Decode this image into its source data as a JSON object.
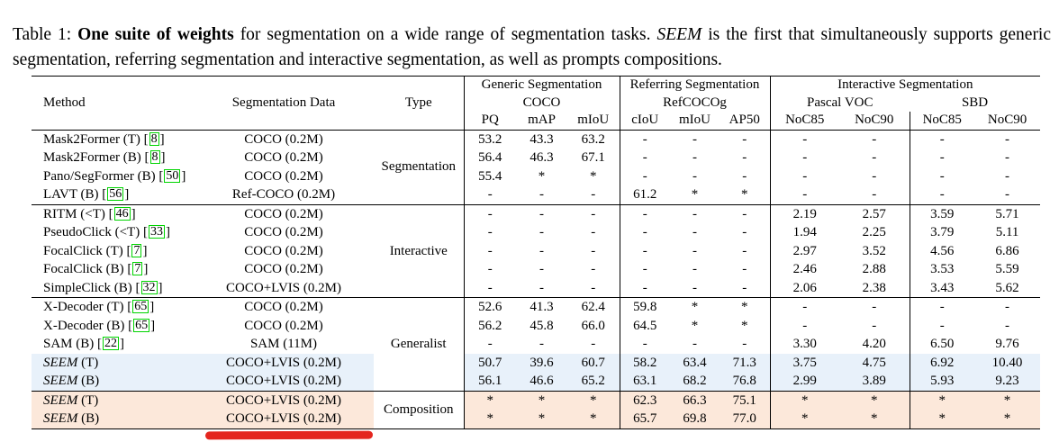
{
  "caption": {
    "prefix": "Table 1: ",
    "bold": "One suite of weights",
    "mid": " for segmentation on a wide range of segmentation tasks. ",
    "italic": "SEEM",
    "suffix": " is the first that simultaneously supports generic segmentation, referring segmentation and interactive segmentation, as well as prompts compositions."
  },
  "table": {
    "citation": {
      "open": "[",
      "close": "]"
    },
    "colors": {
      "highlight_blue": "#e8f1fa",
      "highlight_peach": "#fce8da",
      "citation_green": "#00d400",
      "annotation_red": "#e4261f"
    },
    "header": {
      "method": "Method",
      "seg_data": "Segmentation Data",
      "type": "Type",
      "groups": [
        {
          "title": "Generic Segmentation",
          "subtitle": "COCO",
          "cols": [
            "PQ",
            "mAP",
            "mIoU"
          ]
        },
        {
          "title": "Referring Segmentation",
          "subtitle": "RefCOCOg",
          "cols": [
            "cIoU",
            "mIoU",
            "AP50"
          ]
        },
        {
          "title": "Interactive Segmentation",
          "subgroups": [
            {
              "subtitle": "Pascal VOC",
              "cols": [
                "NoC85",
                "NoC90"
              ]
            },
            {
              "subtitle": "SBD",
              "cols": [
                "NoC85",
                "NoC90"
              ]
            }
          ]
        }
      ]
    },
    "groups": [
      {
        "type": "Segmentation",
        "rows": [
          {
            "name": "Mask2Former (T) ",
            "cite": "8",
            "data": "COCO (0.2M)",
            "values": [
              "53.2",
              "43.3",
              "63.2",
              "-",
              "-",
              "-",
              "-",
              "-",
              "-",
              "-"
            ]
          },
          {
            "name": "Mask2Former (B) ",
            "cite": "8",
            "data": "COCO (0.2M)",
            "values": [
              "56.4",
              "46.3",
              "67.1",
              "-",
              "-",
              "-",
              "-",
              "-",
              "-",
              "-"
            ]
          },
          {
            "name": "Pano/SegFormer (B) ",
            "cite": "50",
            "data": "COCO (0.2M)",
            "values": [
              "55.4",
              "*",
              "*",
              "-",
              "-",
              "-",
              "-",
              "-",
              "-",
              "-"
            ]
          },
          {
            "name": "LAVT (B) ",
            "cite": "56",
            "data": "Ref-COCO (0.2M)",
            "values": [
              "-",
              "-",
              "-",
              "61.2",
              "*",
              "*",
              "-",
              "-",
              "-",
              "-"
            ]
          }
        ]
      },
      {
        "type": "Interactive",
        "rows": [
          {
            "name": "RITM (<T) ",
            "cite": "46",
            "data": "COCO (0.2M)",
            "values": [
              "-",
              "-",
              "-",
              "-",
              "-",
              "-",
              "2.19",
              "2.57",
              "3.59",
              "5.71"
            ]
          },
          {
            "name": "PseudoClick (<T) ",
            "cite": "33",
            "data": "COCO (0.2M)",
            "values": [
              "-",
              "-",
              "-",
              "-",
              "-",
              "-",
              "1.94",
              "2.25",
              "3.79",
              "5.11"
            ]
          },
          {
            "name": "FocalClick (T) ",
            "cite": "7",
            "data": "COCO (0.2M)",
            "values": [
              "-",
              "-",
              "-",
              "-",
              "-",
              "-",
              "2.97",
              "3.52",
              "4.56",
              "6.86"
            ]
          },
          {
            "name": "FocalClick (B) ",
            "cite": "7",
            "data": "COCO (0.2M)",
            "values": [
              "-",
              "-",
              "-",
              "-",
              "-",
              "-",
              "2.46",
              "2.88",
              "3.53",
              "5.59"
            ]
          },
          {
            "name": "SimpleClick (B) ",
            "cite": "32",
            "data": "COCO+LVIS (0.2M)",
            "values": [
              "-",
              "-",
              "-",
              "-",
              "-",
              "-",
              "2.06",
              "2.38",
              "3.43",
              "5.62"
            ]
          }
        ]
      },
      {
        "type": "Generalist",
        "rows": [
          {
            "name": "X-Decoder (T) ",
            "cite": "65",
            "data": "COCO (0.2M)",
            "values": [
              "52.6",
              "41.3",
              "62.4",
              "59.8",
              "*",
              "*",
              "-",
              "-",
              "-",
              "-"
            ]
          },
          {
            "name": "X-Decoder (B) ",
            "cite": "65",
            "data": "COCO (0.2M)",
            "values": [
              "56.2",
              "45.8",
              "66.0",
              "64.5",
              "*",
              "*",
              "-",
              "-",
              "-",
              "-"
            ]
          },
          {
            "name": "SAM (B) ",
            "cite": "22",
            "data": "SAM (11M)",
            "values": [
              "-",
              "-",
              "-",
              "-",
              "-",
              "-",
              "3.30",
              "4.20",
              "6.50",
              "9.76"
            ]
          },
          {
            "name_italic": "SEEM",
            "name": " (T)",
            "data": "COCO+LVIS (0.2M)",
            "highlight": "blue",
            "values": [
              "50.7",
              "39.6",
              "60.7",
              "58.2",
              "63.4",
              "71.3",
              "3.75",
              "4.75",
              "6.92",
              "10.40"
            ]
          },
          {
            "name_italic": "SEEM",
            "name": " (B)",
            "data": "COCO+LVIS (0.2M)",
            "highlight": "blue",
            "values": [
              "56.1",
              "46.6",
              "65.2",
              "63.1",
              "68.2",
              "76.8",
              "2.99",
              "3.89",
              "5.93",
              "9.23"
            ]
          }
        ]
      },
      {
        "type": "Composition",
        "rows": [
          {
            "name_italic": "SEEM",
            "name": " (T)",
            "data": "COCO+LVIS (0.2M)",
            "highlight": "peach",
            "values": [
              "*",
              "*",
              "*",
              "62.3",
              "66.3",
              "75.1",
              "*",
              "*",
              "*",
              "*"
            ]
          },
          {
            "name_italic": "SEEM",
            "name": " (B)",
            "data": "COCO+LVIS (0.2M)",
            "highlight": "peach",
            "values": [
              "*",
              "*",
              "*",
              "65.7",
              "69.8",
              "77.0",
              "*",
              "*",
              "*",
              "*"
            ]
          }
        ]
      }
    ]
  }
}
